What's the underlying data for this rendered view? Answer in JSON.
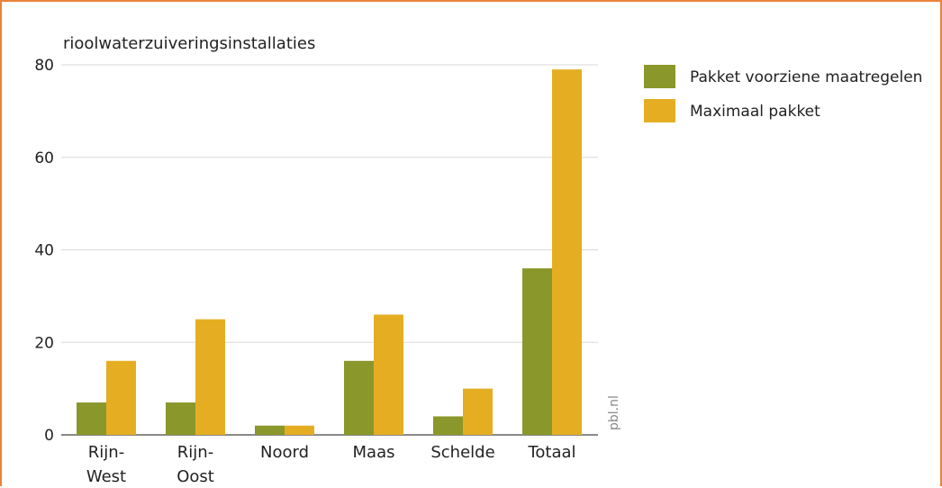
{
  "chart_data": {
    "type": "bar",
    "ylabel": "rioolwaterzuiveringsinstallaties",
    "categories": [
      [
        "Rijn-",
        "West"
      ],
      [
        "Rijn-",
        "Oost"
      ],
      [
        "Noord"
      ],
      [
        "Maas"
      ],
      [
        "Schelde"
      ],
      [
        "Totaal"
      ]
    ],
    "series": [
      {
        "name": "Pakket voorziene maatregelen",
        "color": "#8a972a",
        "values": [
          7,
          7,
          2,
          16,
          4,
          36
        ]
      },
      {
        "name": "Maximaal pakket",
        "color": "#e5ae22",
        "values": [
          16,
          25,
          2,
          26,
          10,
          79
        ]
      }
    ],
    "ylim": [
      0,
      80
    ],
    "yticks": [
      0,
      20,
      40,
      60,
      80
    ],
    "grid": true,
    "legend_position": "top-right",
    "credit": "pbl.nl"
  }
}
